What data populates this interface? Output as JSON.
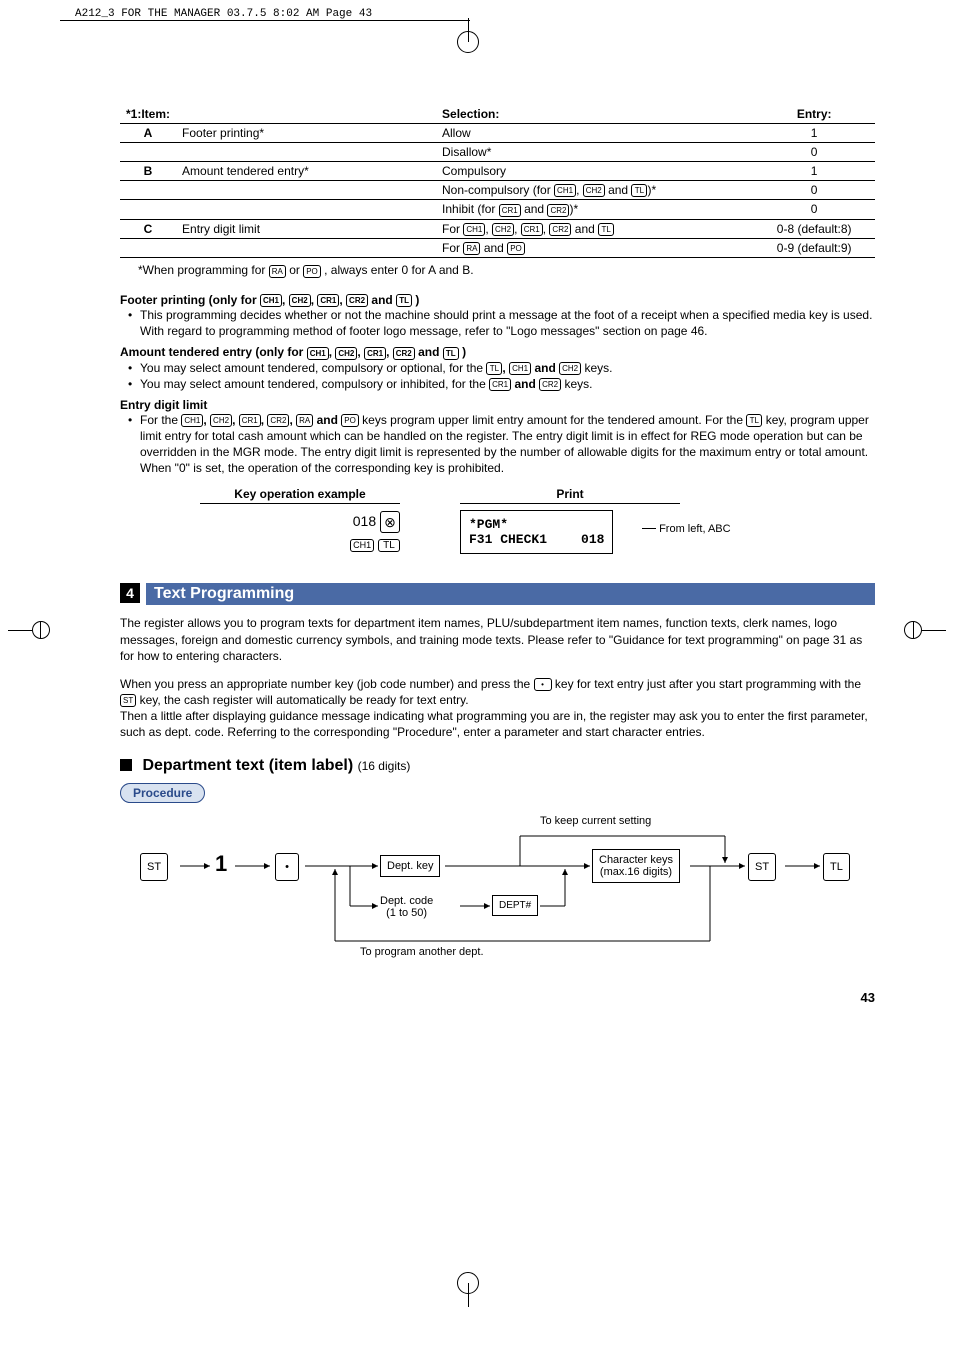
{
  "print_header": "A212_3 FOR THE MANAGER  03.7.5 8:02 AM  Page 43",
  "table": {
    "headers": {
      "item_prefix": "*1:",
      "item": "Item:",
      "selection": "Selection:",
      "entry": "Entry:"
    },
    "rows": [
      {
        "key": "A",
        "desc": "Footer printing*",
        "sel": "Allow",
        "ent": "1"
      },
      {
        "key": "",
        "desc": "",
        "sel": "Disallow*",
        "ent": "0"
      },
      {
        "key": "B",
        "desc": "Amount tendered entry*",
        "sel": "Compulsory",
        "ent": "1"
      },
      {
        "key": "",
        "desc": "",
        "sel_prefix": "Non-compulsory (for ",
        "sel_suffix": ")*",
        "ent": "0",
        "keys": [
          "CH1",
          "CH2",
          "TL"
        ],
        "joiner_last": " and "
      },
      {
        "key": "",
        "desc": "",
        "sel_prefix": "Inhibit (for ",
        "sel_suffix": ")*",
        "ent": "0",
        "keys": [
          "CR1",
          "CR2"
        ],
        "joiner_last": " and "
      },
      {
        "key": "C",
        "desc": "Entry digit limit",
        "sel_prefix": "For ",
        "sel_suffix": "",
        "ent": "0-8 (default:8)",
        "keys": [
          "CH1",
          "CH2",
          "CR1",
          "CR2",
          "TL"
        ],
        "joiner_last": " and "
      },
      {
        "key": "",
        "desc": "",
        "sel_prefix": "For ",
        "sel_suffix": "",
        "ent": "0-9 (default:9)",
        "keys": [
          "RA",
          "PO"
        ],
        "joiner_last": " and "
      }
    ],
    "footnote_pre": "*When programming for ",
    "footnote_k1": "RA",
    "footnote_mid": " or ",
    "footnote_k2": "PO",
    "footnote_post": ", always enter 0 for A and B."
  },
  "footer_printing": {
    "heading_pre": "Footer printing (only for ",
    "heading_keys": [
      "CH1",
      "CH2",
      "CR1",
      "CR2",
      "TL"
    ],
    "heading_post": ")",
    "bullet": "This programming decides whether or not the machine should print a message at the foot of a receipt when a specified media key is used.  With regard to programming method of footer logo message, refer to \"Logo messages\" section on page 46."
  },
  "amount_tendered": {
    "heading_pre": "Amount tendered entry (only for ",
    "heading_keys": [
      "CH1",
      "CH2",
      "CR1",
      "CR2",
      "TL"
    ],
    "heading_post": ")",
    "b1_pre": "You may select amount tendered, compulsory or optional, for the ",
    "b1_keys": [
      "TL",
      "CH1",
      "CH2"
    ],
    "b1_post": " keys.",
    "b2_pre": "You may select amount tendered, compulsory or inhibited, for the ",
    "b2_keys": [
      "CR1",
      "CR2"
    ],
    "b2_post": " keys."
  },
  "entry_digit": {
    "heading": "Entry digit limit",
    "b_pre": "For the ",
    "b_keys": [
      "CH1",
      "CH2",
      "CR1",
      "CR2",
      "RA",
      "PO"
    ],
    "b_mid": " keys program upper limit entry amount for the tendered amount.  For the ",
    "b_key_tl": "TL",
    "b_post": " key, program upper limit entry for total cash amount which can be handled on the register.  The entry digit limit is in effect for REG mode operation but can be overridden in the MGR mode. The entry digit limit is represented by the number of allowable digits for the maximum entry or total amount.  When \"0\" is set, the operation of the corresponding key is prohibited."
  },
  "example": {
    "col1_head": "Key operation example",
    "col2_head": "Print",
    "num": "018",
    "key1": "⊗",
    "key2": "CH1",
    "key3": "TL",
    "receipt_l1": "*PGM*",
    "receipt_l2a": "F31 CHECK1",
    "receipt_l2b": "018",
    "annot": "From left, ABC"
  },
  "section4": {
    "num": "4",
    "title": "Text Programming",
    "p1": "The register allows you to program texts for department item names, PLU/subdepartment item names, function texts, clerk names, logo messages, foreign and domestic currency symbols, and training mode texts.  Please refer to \"Guidance for text programming\" on page 31 as for how to entering characters.",
    "p2_pre": "When you press an appropriate number key (job code number) and press the ",
    "p2_key1": "•",
    "p2_mid": " key for text entry just after you start programming with the ",
    "p2_key2": "ST",
    "p2_post": " key, the cash register will automatically be ready for text entry.",
    "p3": "Then a little after displaying guidance message indicating what programming you are in, the register may ask you to enter the first parameter, such as dept. code.  Referring to the corresponding \"Procedure\", enter a parameter and start character entries."
  },
  "dept": {
    "heading": "Department text (item label)",
    "note": " (16 digits)",
    "procedure": "Procedure",
    "flow": {
      "st": "ST",
      "one": "1",
      "dot": "•",
      "deptkey": "Dept. key",
      "deptcode": "Dept. code\n(1 to 50)",
      "deptnum": "DEPT#",
      "charkeys": "Character keys\n(max.16 digits)",
      "keep": "To keep current setting",
      "another": "To program another dept.",
      "tl": "TL"
    }
  },
  "page_number": "43",
  "colors": {
    "bar": "#4a6aa5",
    "badge_bg": "#d8e2f0",
    "badge_fg": "#2a4a8a"
  }
}
